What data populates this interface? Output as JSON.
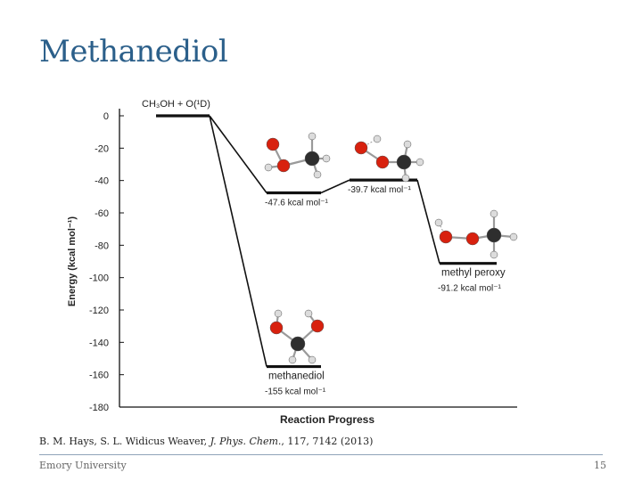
{
  "slide": {
    "title": "Methanediol",
    "citation": {
      "authors": "B. M. Hays, S. L. Widicus Weaver, ",
      "journal": "J. Phys. Chem.",
      "details": ", 117, 7142 (2013)"
    },
    "footer": {
      "institution": "Emory University",
      "page_number": "15"
    }
  },
  "chart_data": {
    "type": "energy-level-diagram",
    "title": "",
    "ylabel": "Energy (kcal mol⁻¹)",
    "xlabel": "Reaction Progress",
    "ylim": [
      -180,
      0
    ],
    "yticks": [
      0,
      -20,
      -40,
      -60,
      -80,
      -100,
      -120,
      -140,
      -160,
      -180
    ],
    "levels": [
      {
        "id": "reactants",
        "energy": 0,
        "label": "CH₃OH + O(¹D)",
        "value_label": "",
        "stage": 0
      },
      {
        "id": "complex1",
        "energy": -47.6,
        "label": "",
        "value_label": "-47.6 kcal mol⁻¹",
        "stage": 1
      },
      {
        "id": "complex2",
        "energy": -39.7,
        "label": "",
        "value_label": "-39.7 kcal mol⁻¹",
        "stage": 2
      },
      {
        "id": "methyl_peroxy",
        "energy": -91.2,
        "label": "methyl peroxy",
        "value_label": "-91.2 kcal mol⁻¹",
        "stage": 3
      },
      {
        "id": "methanediol",
        "energy": -155,
        "label": "methanediol",
        "value_label": "-155 kcal mol⁻¹",
        "stage": 1
      }
    ],
    "connections": [
      [
        "reactants",
        "complex1"
      ],
      [
        "complex1",
        "complex2"
      ],
      [
        "complex2",
        "methyl_peroxy"
      ],
      [
        "reactants",
        "methanediol"
      ]
    ],
    "colors": {
      "oxygen": "#d8210e",
      "carbon": "#2e2e2e",
      "hydrogen": "#dcdcdc",
      "line": "#111111",
      "title": "#2b5f8a"
    }
  }
}
